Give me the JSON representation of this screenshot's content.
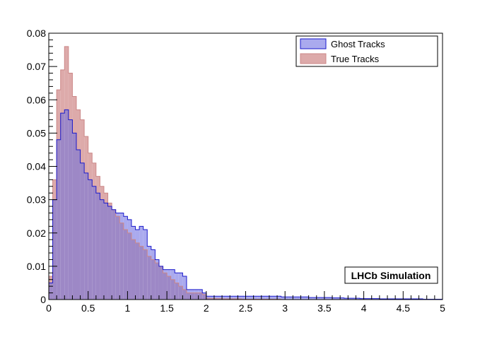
{
  "chart_data": {
    "type": "histogram",
    "title": "",
    "xlabel": "",
    "ylabel": "",
    "xlim": [
      0,
      5
    ],
    "ylim": [
      0,
      0.08
    ],
    "bin_width": 0.05,
    "x_ticks": [
      "0",
      "0.5",
      "1",
      "1.5",
      "2",
      "2.5",
      "3",
      "3.5",
      "4",
      "4.5",
      "5"
    ],
    "y_ticks": [
      "0",
      "0.01",
      "0.02",
      "0.03",
      "0.04",
      "0.05",
      "0.06",
      "0.07",
      "0.08"
    ],
    "x_tick_values": [
      0,
      0.5,
      1,
      1.5,
      2,
      2.5,
      3,
      3.5,
      4,
      4.5,
      5
    ],
    "y_tick_values": [
      0,
      0.01,
      0.02,
      0.03,
      0.04,
      0.05,
      0.06,
      0.07,
      0.08
    ],
    "legend_position": "top-right",
    "annotation": "LHCb Simulation",
    "series": [
      {
        "name": "Ghost Tracks",
        "fill": "#aaaaee",
        "line": "#1a1acc",
        "values": [
          0.005,
          0.03,
          0.048,
          0.056,
          0.057,
          0.054,
          0.05,
          0.045,
          0.041,
          0.038,
          0.036,
          0.034,
          0.032,
          0.03,
          0.029,
          0.028,
          0.027,
          0.026,
          0.026,
          0.025,
          0.024,
          0.022,
          0.021,
          0.022,
          0.021,
          0.016,
          0.015,
          0.012,
          0.01,
          0.009,
          0.009,
          0.009,
          0.008,
          0.008,
          0.007,
          0.003,
          0.003,
          0.003,
          0.003,
          0.002,
          0.001,
          0.001,
          0.001,
          0.001,
          0.001,
          0.001,
          0.001,
          0.001,
          0.001,
          0.001,
          0.001,
          0.001,
          0.001,
          0.001,
          0.001,
          0.001,
          0.001,
          0.001,
          0.001,
          0.0008,
          0.0008,
          0.0008,
          0.0008,
          0.0008,
          0.0008,
          0.0008,
          0.0006,
          0.0006,
          0.0006,
          0.0006,
          0.0006,
          0.0006,
          0.0005,
          0.0005,
          0.0005,
          0.0004,
          0.0004,
          0.0004,
          0.0004,
          0.0003,
          0.0003,
          0.0003,
          0.0003,
          0.0003,
          0.0002,
          0.0002,
          0.0002,
          0.0002,
          0.0002,
          0.0002,
          0.0002,
          0.0002,
          0.0002,
          0.0002,
          0.0002,
          0.0001,
          0.0001,
          0.0001,
          0.0001,
          0.0001
        ]
      },
      {
        "name": "True Tracks",
        "fill": "#ddaaaa",
        "line": "#cc8888",
        "values": [
          0.007,
          0.036,
          0.063,
          0.069,
          0.076,
          0.068,
          0.061,
          0.057,
          0.054,
          0.049,
          0.044,
          0.041,
          0.037,
          0.034,
          0.032,
          0.029,
          0.027,
          0.025,
          0.023,
          0.021,
          0.02,
          0.018,
          0.017,
          0.016,
          0.015,
          0.013,
          0.012,
          0.011,
          0.01,
          0.008,
          0.007,
          0.006,
          0.005,
          0.004,
          0.003,
          0.002,
          0.002,
          0.002,
          0.002,
          0.0015,
          0.0004,
          0.0003,
          0.0003,
          0.0003,
          0.0002,
          0.0002,
          0.0002,
          0.0002,
          0.0002,
          0.0001,
          0.0001,
          0.0001,
          0.0001,
          0.0001,
          0.0001,
          0.0001,
          0.0001,
          0.0001,
          0.0001,
          0,
          0,
          0,
          0,
          0,
          0,
          0,
          0,
          0,
          0,
          0,
          0,
          0,
          0,
          0,
          0,
          0,
          0,
          0,
          0,
          0,
          0,
          0,
          0,
          0,
          0,
          0,
          0,
          0,
          0,
          0,
          0,
          0,
          0,
          0,
          0,
          0,
          0,
          0,
          0,
          0
        ]
      }
    ],
    "overlap_fill": "#9d88c6"
  }
}
